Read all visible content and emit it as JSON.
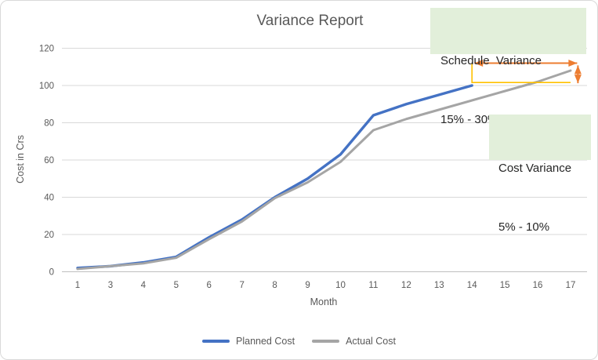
{
  "chart": {
    "title": "Variance Report",
    "x_axis_title": "Month",
    "y_axis_title": "Cost in Crs"
  },
  "annotations": {
    "bg_color": "#e2efda",
    "schedule_variance": {
      "line1": "Schedule  Variance",
      "line2": "15% - 30%"
    },
    "cost_variance": {
      "line1": "Cost Variance",
      "line2": "5% - 10%"
    }
  },
  "chart_data": {
    "type": "line",
    "title": "Variance Report",
    "xlabel": "Month",
    "ylabel": "Cost in Crs",
    "categories": [
      1,
      3,
      4,
      5,
      6,
      7,
      8,
      9,
      10,
      11,
      12,
      13,
      14,
      15,
      16,
      17
    ],
    "series": [
      {
        "name": "Planned Cost",
        "color": "#4472C4",
        "values": [
          2,
          3,
          5,
          8,
          18.5,
          28,
          40,
          50,
          63,
          84,
          90,
          95,
          100
        ]
      },
      {
        "name": "Actual Cost",
        "color": "#A5A5A5",
        "values": [
          1.5,
          3,
          4.5,
          7.5,
          17.5,
          27,
          39.5,
          48,
          59,
          76,
          82,
          87,
          92,
          97,
          102,
          108
        ]
      }
    ],
    "ylim": [
      0,
      120
    ],
    "yticks": [
      0,
      20,
      40,
      60,
      80,
      100,
      120
    ],
    "grid": true,
    "legend_position": "bottom",
    "annotation_shapes": {
      "colors": {
        "arrow": "#ED7D31",
        "bracket": "#FFC000"
      },
      "schedule_arrow": {
        "from_month": 14,
        "to_month": 17.2,
        "value": 112
      },
      "cost_arrow": {
        "month": 17.2,
        "from_value": 110.8,
        "to_value": 101.2
      },
      "bracket": {
        "month": 14,
        "top_value": 112,
        "bottom_value": 101.6,
        "end_month": 17
      }
    }
  }
}
